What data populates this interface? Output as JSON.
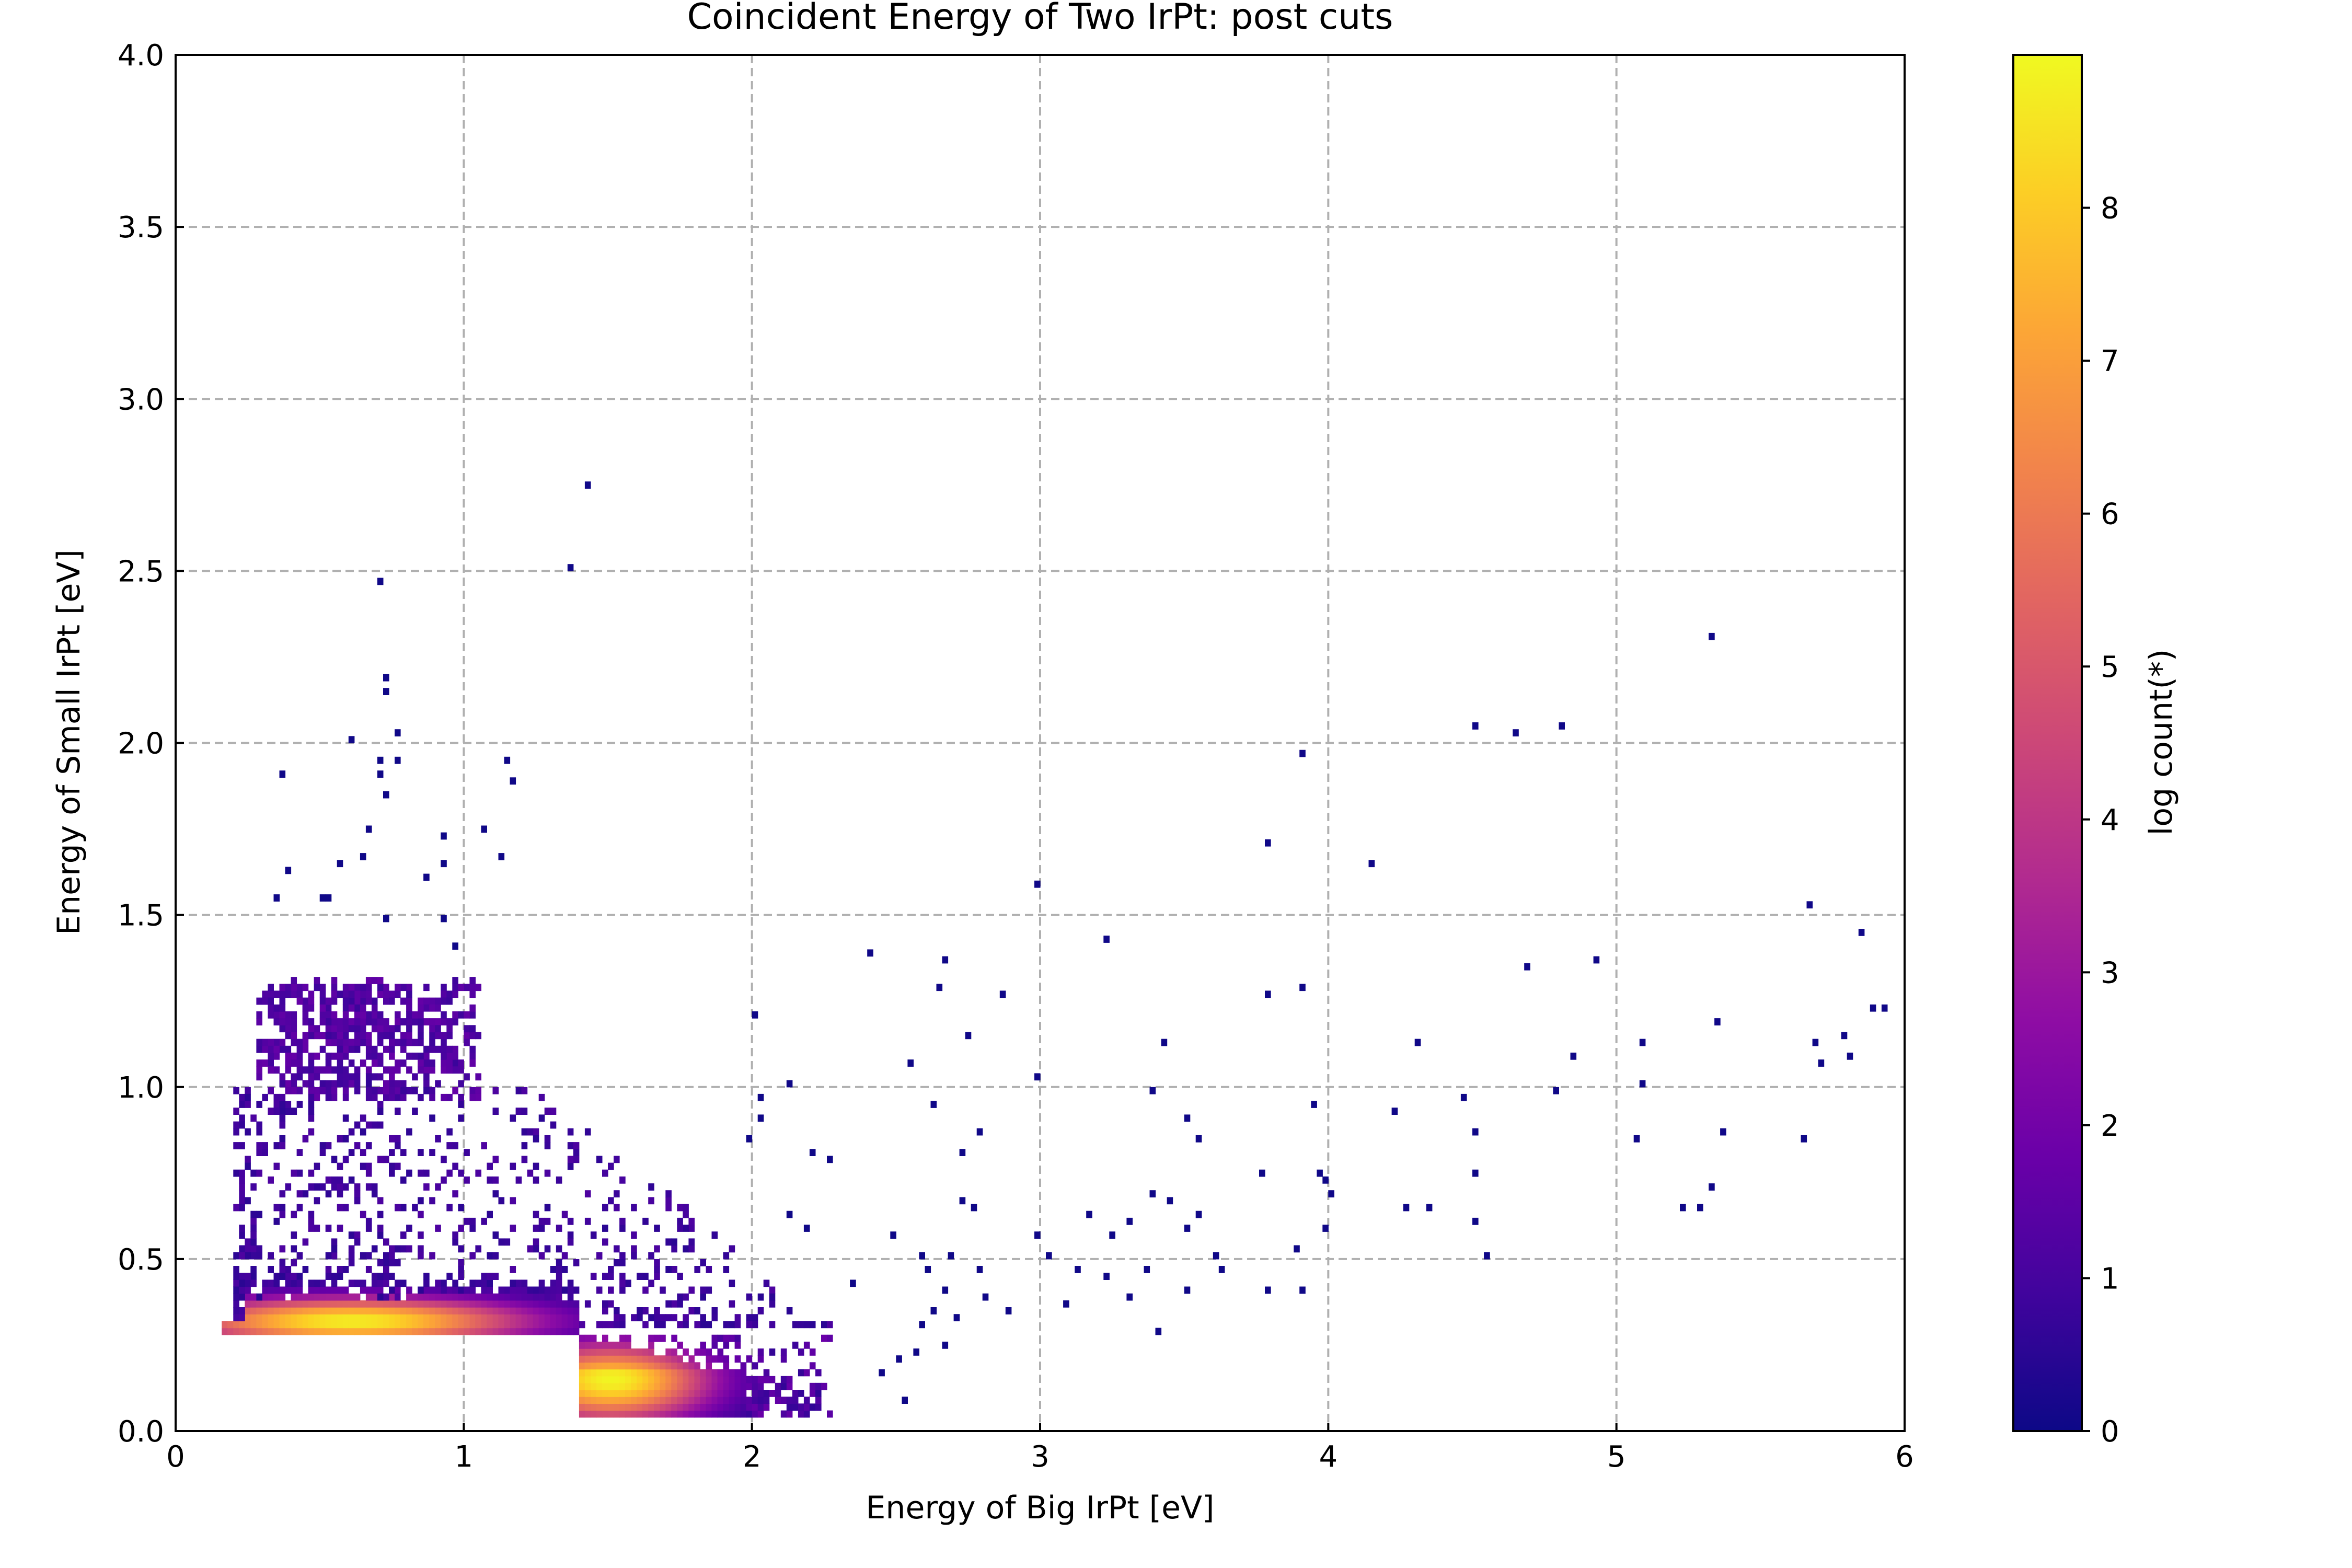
{
  "chart_data": {
    "type": "heatmap",
    "title": "Coincident Energy of Two IrPt: post cuts",
    "xlabel": "Energy of Big IrPt [eV]",
    "ylabel": "Energy of Small IrPt [eV]",
    "xlim": [
      0,
      6
    ],
    "ylim": [
      0,
      4
    ],
    "x_ticks": [
      "0",
      "1",
      "2",
      "3",
      "4",
      "5",
      "6"
    ],
    "y_ticks": [
      "0.0",
      "0.5",
      "1.0",
      "1.5",
      "2.0",
      "2.5",
      "3.0",
      "3.5",
      "4.0"
    ],
    "grid": true,
    "colorbar": {
      "label": "log count(*)",
      "range": [
        0,
        9
      ],
      "ticks": [
        "0",
        "1",
        "2",
        "3",
        "4",
        "5",
        "6",
        "7",
        "8"
      ],
      "colormap": "plasma"
    },
    "bin_size": [
      0.02,
      0.02
    ],
    "features": [
      {
        "type": "dense_band",
        "x": [
          0.16,
          1.4
        ],
        "y": [
          0.28,
          0.44
        ],
        "peak": [
          0.6,
          0.31
        ],
        "peak_log_count": 8.8
      },
      {
        "type": "dense_band",
        "x": [
          1.4,
          2.3
        ],
        "y": [
          0.03,
          0.28
        ],
        "peak": [
          1.5,
          0.13
        ],
        "peak_log_count": 8.9
      },
      {
        "type": "cluster",
        "x": [
          0.28,
          1.05
        ],
        "y": [
          0.95,
          1.3
        ],
        "center": [
          0.6,
          1.12
        ],
        "log_count": 1.2
      },
      {
        "type": "scatter_region",
        "x": [
          0.2,
          2.5
        ],
        "y": [
          0.3,
          1.0
        ],
        "log_count": 0.5
      }
    ],
    "isolated_points": [
      [
        1.42,
        2.74
      ],
      [
        1.35,
        2.49
      ],
      [
        0.69,
        2.45
      ],
      [
        0.71,
        2.18
      ],
      [
        0.71,
        2.14
      ],
      [
        0.76,
        2.02
      ],
      [
        0.6,
        2.01
      ],
      [
        0.75,
        1.94
      ],
      [
        0.69,
        1.93
      ],
      [
        0.69,
        1.9
      ],
      [
        0.36,
        1.89
      ],
      [
        0.72,
        1.83
      ],
      [
        1.15,
        1.94
      ],
      [
        1.17,
        1.88
      ],
      [
        0.65,
        1.73
      ],
      [
        0.92,
        1.71
      ],
      [
        1.05,
        1.73
      ],
      [
        1.11,
        1.65
      ],
      [
        0.63,
        1.66
      ],
      [
        0.55,
        1.63
      ],
      [
        0.38,
        1.62
      ],
      [
        0.85,
        1.6
      ],
      [
        0.92,
        1.64
      ],
      [
        0.49,
        1.54
      ],
      [
        0.52,
        1.54
      ],
      [
        0.34,
        1.53
      ],
      [
        0.91,
        1.48
      ],
      [
        0.95,
        1.4
      ],
      [
        0.71,
        1.47
      ],
      [
        2.39,
        1.38
      ],
      [
        2.65,
        1.36
      ],
      [
        3.22,
        1.41
      ],
      [
        2.97,
        1.57
      ],
      [
        3.78,
        1.69
      ],
      [
        4.13,
        1.63
      ],
      [
        3.9,
        1.96
      ],
      [
        4.51,
        2.05
      ],
      [
        4.63,
        2.02
      ],
      [
        4.79,
        2.05
      ],
      [
        5.31,
        2.29
      ],
      [
        5.66,
        1.51
      ],
      [
        5.84,
        1.43
      ],
      [
        5.88,
        1.21
      ],
      [
        5.91,
        1.22
      ],
      [
        4.67,
        1.33
      ],
      [
        4.93,
        1.35
      ],
      [
        5.07,
        1.13
      ],
      [
        5.33,
        1.18
      ],
      [
        5.68,
        1.11
      ],
      [
        5.78,
        1.15
      ],
      [
        5.7,
        1.06
      ],
      [
        5.8,
        1.07
      ],
      [
        4.85,
        1.07
      ],
      [
        5.08,
        0.99
      ],
      [
        4.78,
        0.97
      ],
      [
        4.3,
        1.12
      ],
      [
        4.47,
        0.96
      ],
      [
        3.42,
        1.12
      ],
      [
        3.38,
        0.98
      ],
      [
        2.85,
        1.25
      ],
      [
        2.73,
        1.15
      ],
      [
        2.64,
        1.27
      ],
      [
        2.98,
        1.02
      ],
      [
        3.77,
        1.26
      ],
      [
        3.9,
        1.28
      ],
      [
        3.93,
        0.93
      ],
      [
        4.22,
        0.91
      ],
      [
        4.5,
        0.85
      ],
      [
        4.51,
        0.74
      ],
      [
        4.5,
        0.6
      ],
      [
        4.53,
        0.49
      ],
      [
        5.05,
        0.84
      ],
      [
        5.35,
        0.86
      ],
      [
        5.31,
        0.69
      ],
      [
        5.22,
        0.63
      ],
      [
        5.27,
        0.64
      ],
      [
        5.64,
        0.84
      ],
      [
        3.5,
        0.9
      ],
      [
        3.53,
        0.84
      ],
      [
        3.76,
        0.74
      ],
      [
        3.95,
        0.74
      ],
      [
        3.97,
        0.71
      ],
      [
        4.0,
        0.67
      ],
      [
        3.98,
        0.59
      ],
      [
        4.27,
        0.63
      ],
      [
        4.33,
        0.63
      ],
      [
        3.87,
        0.51
      ],
      [
        3.89,
        0.39
      ],
      [
        3.78,
        0.4
      ],
      [
        3.54,
        0.61
      ],
      [
        3.51,
        0.58
      ],
      [
        3.44,
        0.66
      ],
      [
        3.29,
        0.6
      ],
      [
        3.23,
        0.57
      ],
      [
        3.15,
        0.61
      ],
      [
        3.38,
        0.67
      ],
      [
        3.6,
        0.49
      ],
      [
        3.61,
        0.46
      ],
      [
        3.51,
        0.4
      ],
      [
        3.12,
        0.45
      ],
      [
        3.22,
        0.44
      ],
      [
        3.3,
        0.37
      ],
      [
        3.35,
        0.46
      ],
      [
        3.4,
        0.27
      ],
      [
        3.08,
        0.35
      ],
      [
        3.02,
        0.5
      ],
      [
        2.98,
        0.57
      ],
      [
        2.6,
        0.46
      ],
      [
        2.66,
        0.4
      ],
      [
        2.58,
        0.3
      ],
      [
        2.62,
        0.34
      ],
      [
        2.69,
        0.32
      ],
      [
        2.87,
        0.34
      ],
      [
        2.49,
        0.2
      ],
      [
        2.66,
        0.23
      ],
      [
        2.79,
        0.38
      ],
      [
        2.43,
        0.15
      ],
      [
        2.56,
        0.22
      ],
      [
        2.52,
        0.08
      ],
      [
        2.33,
        0.42
      ],
      [
        2.18,
        0.59
      ],
      [
        2.12,
        0.62
      ],
      [
        2.25,
        0.78
      ],
      [
        2.03,
        0.95
      ],
      [
        2.12,
        1.0
      ],
      [
        2.2,
        0.79
      ],
      [
        2.02,
        0.89
      ],
      [
        1.97,
        0.84
      ],
      [
        1.99,
        1.2
      ],
      [
        2.47,
        0.56
      ],
      [
        2.57,
        0.49
      ],
      [
        2.68,
        0.49
      ],
      [
        2.78,
        0.47
      ],
      [
        2.71,
        0.66
      ],
      [
        2.76,
        0.64
      ],
      [
        2.71,
        0.79
      ],
      [
        2.78,
        0.86
      ],
      [
        2.55,
        1.06
      ],
      [
        2.62,
        0.94
      ]
    ]
  }
}
